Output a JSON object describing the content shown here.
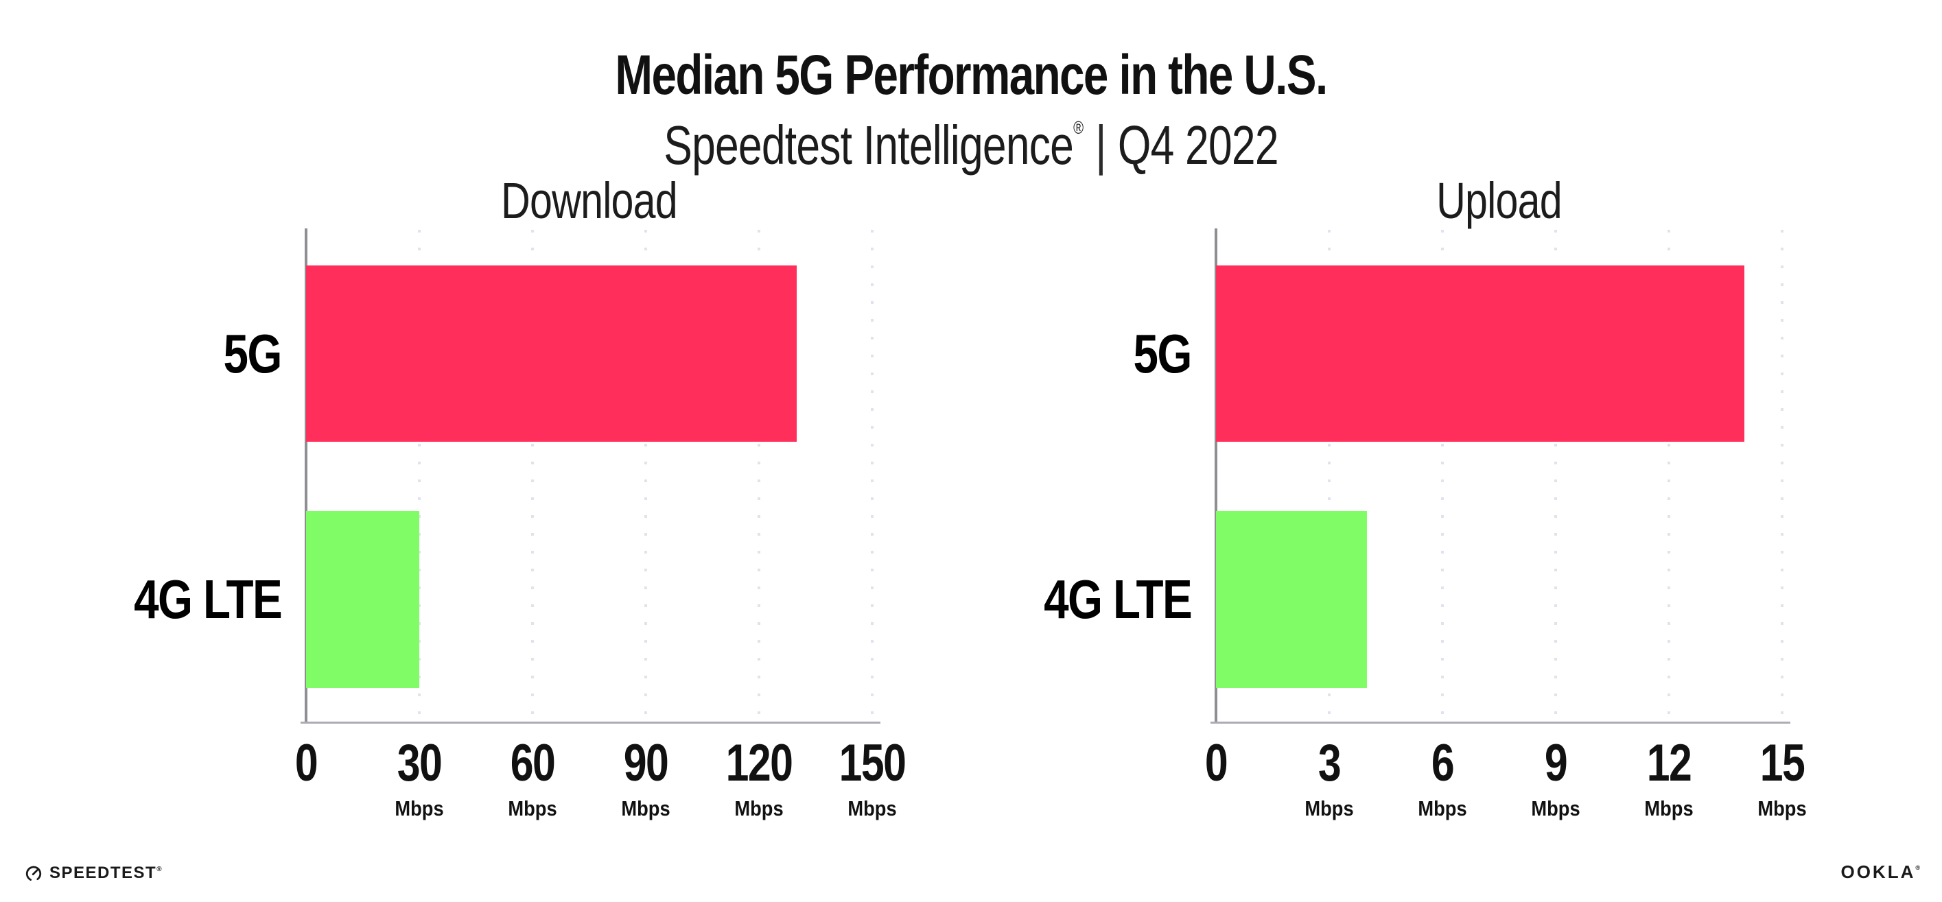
{
  "header": {
    "title": "Median 5G Performance in the U.S.",
    "subtitle_brand": "Speedtest Intelligence",
    "subtitle_reg": "®",
    "subtitle_sep": "|",
    "subtitle_period": "Q4 2022"
  },
  "chart_data": [
    {
      "type": "bar",
      "orientation": "horizontal",
      "title": "Download",
      "categories": [
        "5G",
        "4G LTE"
      ],
      "values": [
        130,
        30
      ],
      "unit": "Mbps",
      "xlim": [
        0,
        150
      ],
      "grid": "dotted-vertical",
      "legend": "none",
      "ticks": [
        {
          "value": 0,
          "label": "0",
          "unit": ""
        },
        {
          "value": 30,
          "label": "30",
          "unit": "Mbps"
        },
        {
          "value": 60,
          "label": "60",
          "unit": "Mbps"
        },
        {
          "value": 90,
          "label": "90",
          "unit": "Mbps"
        },
        {
          "value": 120,
          "label": "120",
          "unit": "Mbps"
        },
        {
          "value": 150,
          "label": "150",
          "unit": "Mbps"
        }
      ]
    },
    {
      "type": "bar",
      "orientation": "horizontal",
      "title": "Upload",
      "categories": [
        "5G",
        "4G LTE"
      ],
      "values": [
        14,
        4
      ],
      "unit": "Mbps",
      "xlim": [
        0,
        15
      ],
      "grid": "dotted-vertical",
      "legend": "none",
      "ticks": [
        {
          "value": 0,
          "label": "0",
          "unit": ""
        },
        {
          "value": 3,
          "label": "3",
          "unit": "Mbps"
        },
        {
          "value": 6,
          "label": "6",
          "unit": "Mbps"
        },
        {
          "value": 9,
          "label": "9",
          "unit": "Mbps"
        },
        {
          "value": 12,
          "label": "12",
          "unit": "Mbps"
        },
        {
          "value": 15,
          "label": "15",
          "unit": "Mbps"
        }
      ]
    }
  ],
  "colors": {
    "series": [
      "#FF2E5B",
      "#80FC66"
    ],
    "series_names": [
      "5G",
      "4G LTE"
    ],
    "gridline": "#E2E2ED",
    "axis_x": "#ACACB4",
    "axis_y": "#8E8E93",
    "text": "#111111"
  },
  "footer": {
    "speedtest_label": "SPEEDTEST",
    "speedtest_mark": "®",
    "ookla_label": "OOKLA",
    "ookla_mark": "®"
  }
}
